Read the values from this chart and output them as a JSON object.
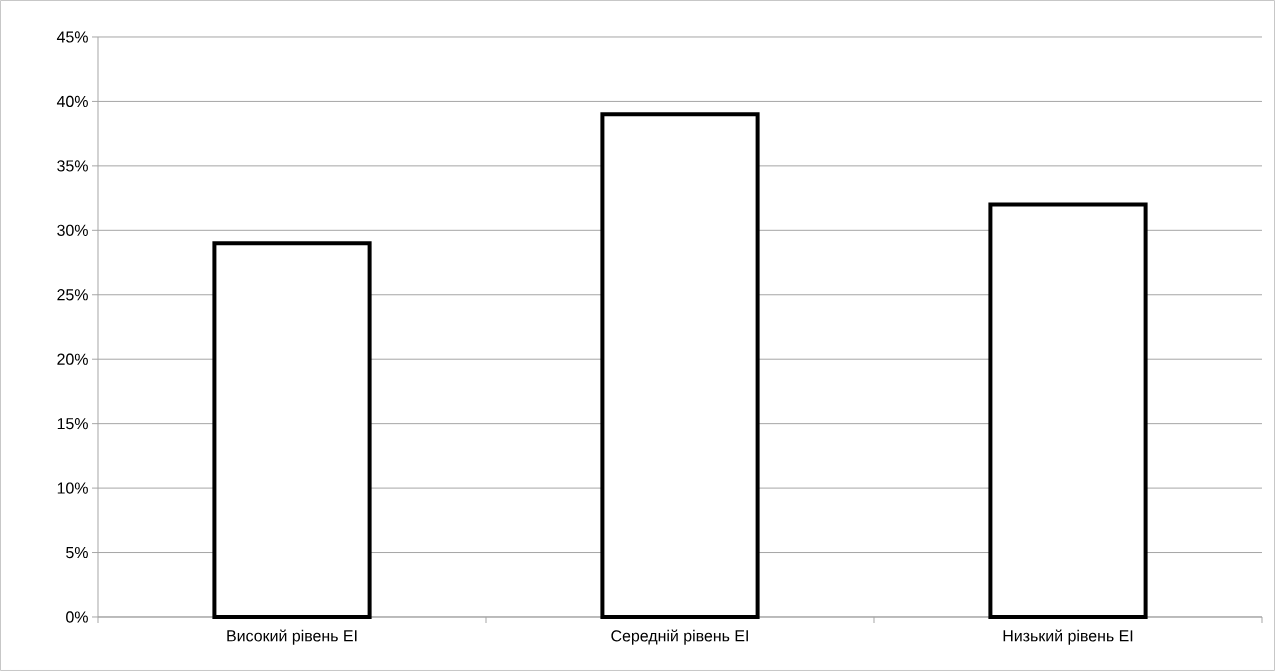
{
  "chart_data": {
    "type": "bar",
    "categories": [
      "Високий рівень EI",
      "Середній рівень EI",
      "Низький рівень EI"
    ],
    "values": [
      29,
      39,
      32
    ],
    "color": "#ffffff",
    "ylim": [
      0,
      45
    ],
    "yticks": [
      {
        "value": 0,
        "label": "0%"
      },
      {
        "value": 5,
        "label": "5%"
      },
      {
        "value": 10,
        "label": "10%"
      },
      {
        "value": 15,
        "label": "15%"
      },
      {
        "value": 20,
        "label": "20%"
      },
      {
        "value": 25,
        "label": "25%"
      },
      {
        "value": 30,
        "label": "30%"
      },
      {
        "value": 35,
        "label": "35%"
      },
      {
        "value": 40,
        "label": "40%"
      },
      {
        "value": 45,
        "label": "45%"
      }
    ],
    "grid": "y"
  }
}
